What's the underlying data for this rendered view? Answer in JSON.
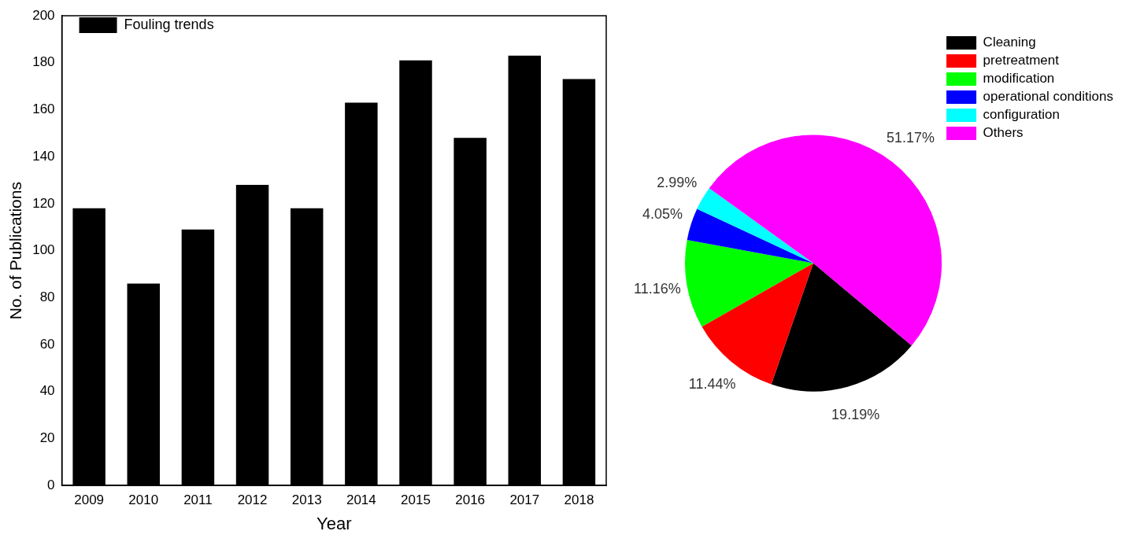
{
  "chart_data": [
    {
      "type": "bar",
      "xlabel": "Year",
      "ylabel": "No. of Publications",
      "categories": [
        "2009",
        "2010",
        "2011",
        "2012",
        "2013",
        "2014",
        "2015",
        "2016",
        "2017",
        "2018"
      ],
      "series": [
        {
          "name": "Fouling trends",
          "color": "#000000",
          "values": [
            118,
            86,
            109,
            128,
            118,
            163,
            181,
            148,
            183,
            173
          ]
        }
      ],
      "ylim": [
        0,
        200
      ],
      "yticks": [
        0,
        20,
        40,
        60,
        80,
        100,
        120,
        140,
        160,
        180,
        200
      ],
      "grid": false,
      "legend": "top left"
    },
    {
      "type": "pie",
      "categories": [
        "Cleaning",
        "pretreatment",
        "modification",
        "operational conditions",
        "configuration",
        "Others"
      ],
      "values": [
        19.19,
        11.44,
        11.16,
        4.05,
        2.99,
        51.17
      ],
      "colors": [
        "#000000",
        "#ff0000",
        "#00ff00",
        "#0000ff",
        "#00ffff",
        "#ff00ff"
      ],
      "value_labels": [
        "19.19%",
        "11.44%",
        "11.16%",
        "4.05%",
        "2.99%",
        "51.17%"
      ],
      "legend": "top right"
    }
  ]
}
